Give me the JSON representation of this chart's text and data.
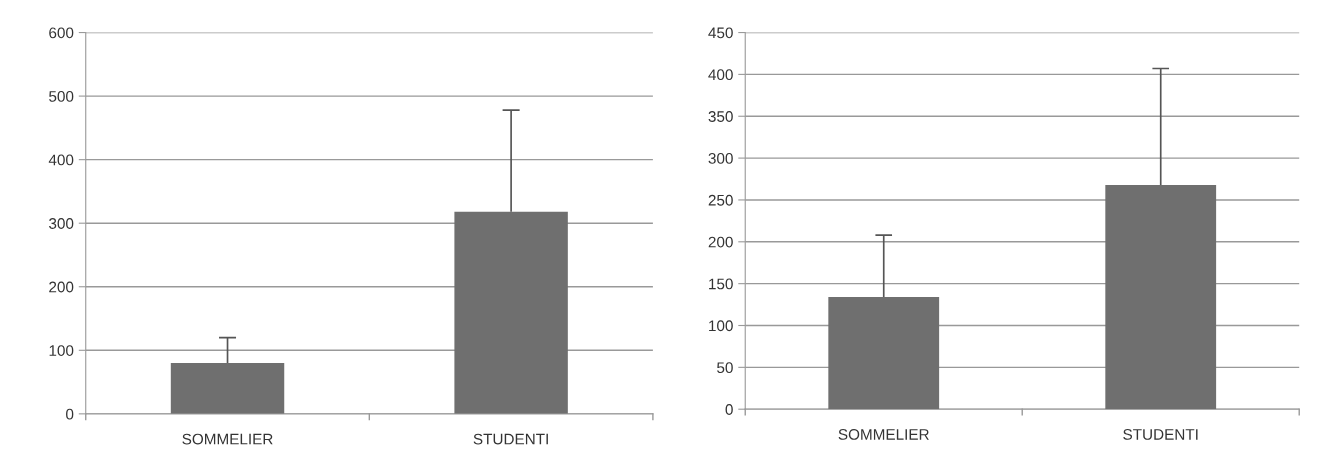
{
  "chart_data": [
    {
      "type": "bar",
      "categories": [
        "SOMMELIER",
        "STUDENTI"
      ],
      "values": [
        80,
        318
      ],
      "errors": [
        [
          80,
          120
        ],
        [
          318,
          478
        ]
      ],
      "color": "#6f6f6f",
      "ylim": [
        0,
        600
      ],
      "yticks": [
        0,
        100,
        200,
        300,
        400,
        500,
        600
      ],
      "grid": "y"
    },
    {
      "type": "bar",
      "categories": [
        "SOMMELIER",
        "STUDENTI"
      ],
      "values": [
        134,
        268
      ],
      "errors": [
        [
          134,
          208
        ],
        [
          268,
          407
        ]
      ],
      "color": "#6f6f6f",
      "ylim": [
        0,
        450
      ],
      "yticks": [
        0,
        50,
        100,
        150,
        200,
        250,
        300,
        350,
        400,
        450
      ],
      "grid": "y"
    }
  ]
}
